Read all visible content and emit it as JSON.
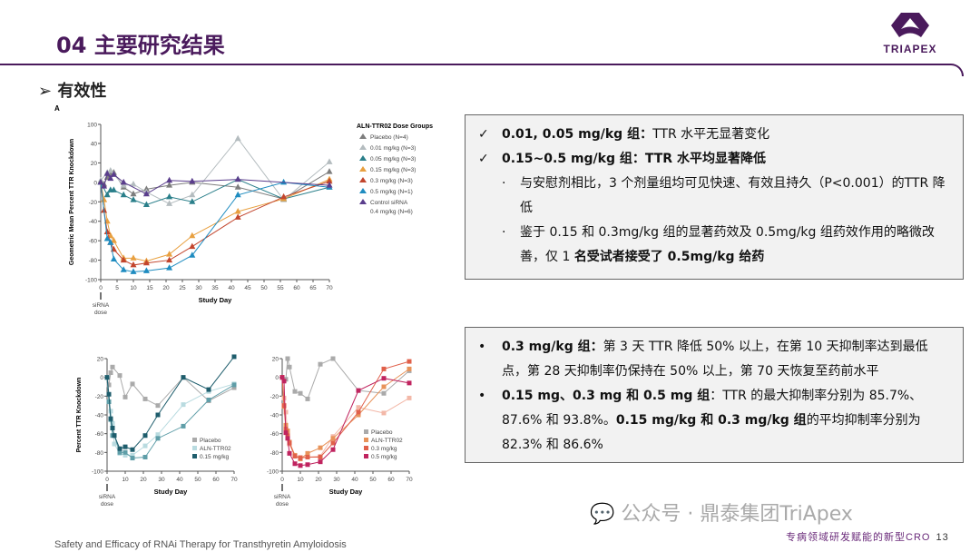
{
  "header": {
    "title": "04 主要研究结果",
    "logo_text": "TRIAPEX",
    "section": "有效性"
  },
  "box1": {
    "items": [
      {
        "bold": "0.01, 0.05 mg/kg 组：",
        "text": "TTR 水平无显著变化"
      },
      {
        "bold": "0.15~0.5 mg/kg 组：TTR 水平均显著降低",
        "text": ""
      }
    ],
    "sub1": "与安慰剂相比，3 个剂量组均可见快速、有效且持久（P<0.001）的TTR 降低",
    "sub2_a": "鉴于 0.15 和 0.3mg/kg 组的显著药效及 0.5mg/kg 组药效作用的略微改善，仅 1 ",
    "sub2_b": "名受试者接受了 0.5mg/kg 给药"
  },
  "box2": {
    "b1_bold": "0.3 mg/kg 组：",
    "b1_text": "第 3 天 TTR 降低 50% 以上，在第 10 天抑制率达到最低点，第 28 天抑制率仍保持在 50% 以上，第 70 天恢复至药前水平",
    "b2_bold": "0.15 mg、0.3 mg 和 0.5 mg 组",
    "b2_text": "：TTR 的最大抑制率分别为 85.7%、87.6% 和 93.8%。",
    "b2_bold2": "0.15 mg/kg 和 0.3 mg/kg 组",
    "b2_text2": "的平均抑制率分别为 82.3% 和 86.6%"
  },
  "footer": {
    "citation": "Safety and Efficacy of RNAi Therapy for Transthyretin Amyloidosis",
    "watermark": "公众号 · 鼎泰集团TriApex",
    "slogan": "专病领域研发赋能的新型CRO",
    "page": "13"
  },
  "chart_data": [
    {
      "type": "line",
      "panel": "A",
      "xlabel": "Study Day",
      "ylabel": "Geometric Mean Percent TTR Knockdown",
      "xlim": [
        0,
        70
      ],
      "ylim": [
        -100,
        100
      ],
      "y_break": true,
      "xticks": [
        0,
        5,
        10,
        15,
        20,
        25,
        30,
        35,
        40,
        45,
        50,
        55,
        60,
        65,
        70
      ],
      "yticks": [
        100,
        40,
        20,
        0,
        -20,
        -40,
        -60,
        -80,
        -100
      ],
      "annotation": "siRNA dose",
      "legend_title": "ALN-TTR02 Dose Groups",
      "legend": "right",
      "marker": "triangle",
      "series": [
        {
          "name": "Placebo (N=4)",
          "color": "#7d7d7d",
          "points": [
            [
              0,
              0
            ],
            [
              1,
              -2
            ],
            [
              2,
              5
            ],
            [
              3,
              8
            ],
            [
              4,
              10
            ],
            [
              7,
              -5
            ],
            [
              10,
              -12
            ],
            [
              14,
              -7
            ],
            [
              21,
              -3
            ],
            [
              28,
              0
            ],
            [
              42,
              -5
            ],
            [
              56,
              -17
            ],
            [
              70,
              11
            ]
          ]
        },
        {
          "name": "0.01 mg/kg (N=3)",
          "color": "#b4bcbf",
          "points": [
            [
              0,
              2
            ],
            [
              2,
              10
            ],
            [
              3,
              12
            ],
            [
              4,
              8
            ],
            [
              7,
              -3
            ],
            [
              10,
              -2
            ],
            [
              14,
              -10
            ],
            [
              21,
              -22
            ],
            [
              28,
              -13
            ],
            [
              42,
              55
            ],
            [
              56,
              -18
            ],
            [
              70,
              21
            ]
          ]
        },
        {
          "name": "0.05 mg/kg (N=3)",
          "color": "#2a7f8a",
          "points": [
            [
              0,
              0
            ],
            [
              2,
              -13
            ],
            [
              3,
              -8
            ],
            [
              4,
              -8
            ],
            [
              7,
              -13
            ],
            [
              10,
              -18
            ],
            [
              14,
              -23
            ],
            [
              21,
              -15
            ],
            [
              28,
              -20
            ],
            [
              42,
              3
            ],
            [
              56,
              -17
            ],
            [
              70,
              -5
            ]
          ]
        },
        {
          "name": "0.15 mg/kg (N=3)",
          "color": "#e8a040",
          "points": [
            [
              0,
              0
            ],
            [
              1,
              -18
            ],
            [
              2,
              -40
            ],
            [
              3,
              -55
            ],
            [
              4,
              -60
            ],
            [
              7,
              -78
            ],
            [
              10,
              -78
            ],
            [
              14,
              -81
            ],
            [
              21,
              -74
            ],
            [
              28,
              -55
            ],
            [
              42,
              -30
            ],
            [
              56,
              -17
            ],
            [
              70,
              3
            ]
          ]
        },
        {
          "name": "0.3 mg/kg (N=3)",
          "color": "#c2452d",
          "points": [
            [
              0,
              0
            ],
            [
              1,
              -29
            ],
            [
              2,
              -51
            ],
            [
              3,
              -62
            ],
            [
              4,
              -69
            ],
            [
              7,
              -80
            ],
            [
              10,
              -85
            ],
            [
              14,
              -83
            ],
            [
              21,
              -80
            ],
            [
              28,
              -66
            ],
            [
              42,
              -36
            ],
            [
              56,
              -15
            ],
            [
              70,
              1
            ]
          ]
        },
        {
          "name": "0.5 mg/kg (N=1)",
          "color": "#1f8cc0",
          "points": [
            [
              0,
              0
            ],
            [
              2,
              -58
            ],
            [
              3,
              -62
            ],
            [
              4,
              -79
            ],
            [
              7,
              -90
            ],
            [
              10,
              -92
            ],
            [
              14,
              -91
            ],
            [
              21,
              -88
            ],
            [
              28,
              -75
            ],
            [
              42,
              -13
            ],
            [
              56,
              0
            ],
            [
              70,
              -5
            ]
          ]
        },
        {
          "name": "Control siRNA 0.4 mg/kg (N=6)",
          "color": "#5a3d8c",
          "points": [
            [
              0,
              0
            ],
            [
              1,
              -4
            ],
            [
              2,
              9
            ],
            [
              3,
              4
            ],
            [
              4,
              8
            ],
            [
              7,
              0
            ],
            [
              14,
              -12
            ],
            [
              21,
              2
            ],
            [
              28,
              1
            ],
            [
              42,
              3
            ],
            [
              70,
              -3
            ]
          ]
        }
      ]
    },
    {
      "type": "line",
      "panel": "B",
      "xlabel": "Study Day",
      "ylabel": "Percent TTR Knockdown",
      "xlim": [
        0,
        70
      ],
      "ylim": [
        -100,
        20
      ],
      "xticks": [
        0,
        10,
        20,
        30,
        40,
        50,
        60,
        70
      ],
      "yticks": [
        20,
        0,
        -20,
        -40,
        -60,
        -80,
        -100
      ],
      "annotation": "siRNA dose",
      "legend": "bottom-right",
      "legend_entries": [
        "Placebo",
        "ALN-TTR02",
        "0.15 mg/kg"
      ],
      "marker": "square",
      "series": [
        {
          "color": "#aaaaaa",
          "points": [
            [
              0,
              0
            ],
            [
              1,
              -8
            ],
            [
              2,
              5
            ],
            [
              3,
              11
            ],
            [
              7,
              2
            ],
            [
              10,
              -21
            ],
            [
              14,
              -7
            ],
            [
              21,
              -23
            ],
            [
              28,
              -30
            ],
            [
              42,
              0
            ],
            [
              56,
              -25
            ],
            [
              70,
              -11
            ]
          ]
        },
        {
          "color": "#b9dbe0",
          "points": [
            [
              0,
              0
            ],
            [
              1,
              -26
            ],
            [
              2,
              -36
            ],
            [
              3,
              -49
            ],
            [
              4,
              -71
            ],
            [
              7,
              -81
            ],
            [
              10,
              -83
            ],
            [
              14,
              -83
            ],
            [
              21,
              -73
            ],
            [
              28,
              -61
            ],
            [
              42,
              -29
            ],
            [
              56,
              -15
            ],
            [
              70,
              -7
            ]
          ]
        },
        {
          "color": "#5f9ea8",
          "points": [
            [
              0,
              0
            ],
            [
              1,
              -26
            ],
            [
              2,
              -45
            ],
            [
              3,
              -62
            ],
            [
              4,
              -62
            ],
            [
              7,
              -80
            ],
            [
              10,
              -80
            ],
            [
              14,
              -86
            ],
            [
              21,
              -85
            ],
            [
              28,
              -65
            ],
            [
              42,
              -52
            ],
            [
              56,
              -24
            ],
            [
              70,
              -8
            ]
          ]
        },
        {
          "color": "#1e5d6c",
          "points": [
            [
              0,
              0
            ],
            [
              1,
              -18
            ],
            [
              2,
              -44
            ],
            [
              3,
              -54
            ],
            [
              4,
              -62
            ],
            [
              7,
              -76
            ],
            [
              10,
              -74
            ],
            [
              14,
              -77
            ],
            [
              21,
              -62
            ],
            [
              28,
              -40
            ],
            [
              42,
              0
            ],
            [
              56,
              -13
            ],
            [
              70,
              22
            ]
          ]
        }
      ]
    },
    {
      "type": "line",
      "panel": "B-right",
      "xlabel": "Study Day",
      "xlim": [
        0,
        70
      ],
      "ylim": [
        -100,
        20
      ],
      "xticks": [
        0,
        10,
        20,
        30,
        40,
        50,
        60,
        70
      ],
      "yticks": [
        20,
        0,
        -20,
        -40,
        -60,
        -80,
        -100
      ],
      "annotation": "siRNA dose",
      "legend": "bottom-right",
      "legend_entries": [
        "Placebo",
        "ALN-TTR02",
        "0.3 mg/kg",
        "0.5 mg/kg"
      ],
      "marker": "square",
      "series": [
        {
          "color": "#aaaaaa",
          "points": [
            [
              0,
              0
            ],
            [
              2,
              -2
            ],
            [
              3,
              20
            ],
            [
              4,
              11
            ],
            [
              7,
              -15
            ],
            [
              10,
              -17
            ],
            [
              14,
              -23
            ],
            [
              21,
              14
            ],
            [
              28,
              20
            ],
            [
              42,
              -14
            ],
            [
              56,
              -17
            ],
            [
              70,
              7
            ]
          ]
        },
        {
          "color": "#f3b8a8",
          "points": [
            [
              0,
              0
            ],
            [
              1,
              -22
            ],
            [
              2,
              -37
            ],
            [
              3,
              -60
            ],
            [
              4,
              -71
            ],
            [
              7,
              -84
            ],
            [
              10,
              -85
            ],
            [
              14,
              -85
            ],
            [
              21,
              -84
            ],
            [
              28,
              -63
            ],
            [
              42,
              -32
            ],
            [
              56,
              -38
            ],
            [
              70,
              -22
            ]
          ]
        },
        {
          "color": "#e8935a",
          "points": [
            [
              0,
              0
            ],
            [
              1,
              -31
            ],
            [
              2,
              -51
            ],
            [
              3,
              -57
            ],
            [
              4,
              -69
            ],
            [
              7,
              -83
            ],
            [
              10,
              -87
            ],
            [
              14,
              -81
            ],
            [
              21,
              -75
            ],
            [
              28,
              -65
            ],
            [
              42,
              -40
            ],
            [
              56,
              -10
            ],
            [
              70,
              9
            ]
          ]
        },
        {
          "color": "#e0604a",
          "points": [
            [
              0,
              0
            ],
            [
              1,
              -30
            ],
            [
              2,
              -55
            ],
            [
              3,
              -62
            ],
            [
              4,
              -70
            ],
            [
              7,
              -84
            ],
            [
              10,
              -86
            ],
            [
              14,
              -85
            ],
            [
              21,
              -85
            ],
            [
              28,
              -70
            ],
            [
              42,
              -37
            ],
            [
              56,
              9
            ],
            [
              70,
              17
            ]
          ]
        },
        {
          "color": "#c0245f",
          "points": [
            [
              0,
              0
            ],
            [
              1,
              -4
            ],
            [
              2,
              -59
            ],
            [
              3,
              -65
            ],
            [
              4,
              -81
            ],
            [
              7,
              -92
            ],
            [
              10,
              -94
            ],
            [
              14,
              -93
            ],
            [
              21,
              -90
            ],
            [
              28,
              -77
            ],
            [
              42,
              -14
            ],
            [
              56,
              -1
            ],
            [
              70,
              -6
            ]
          ]
        }
      ]
    }
  ]
}
